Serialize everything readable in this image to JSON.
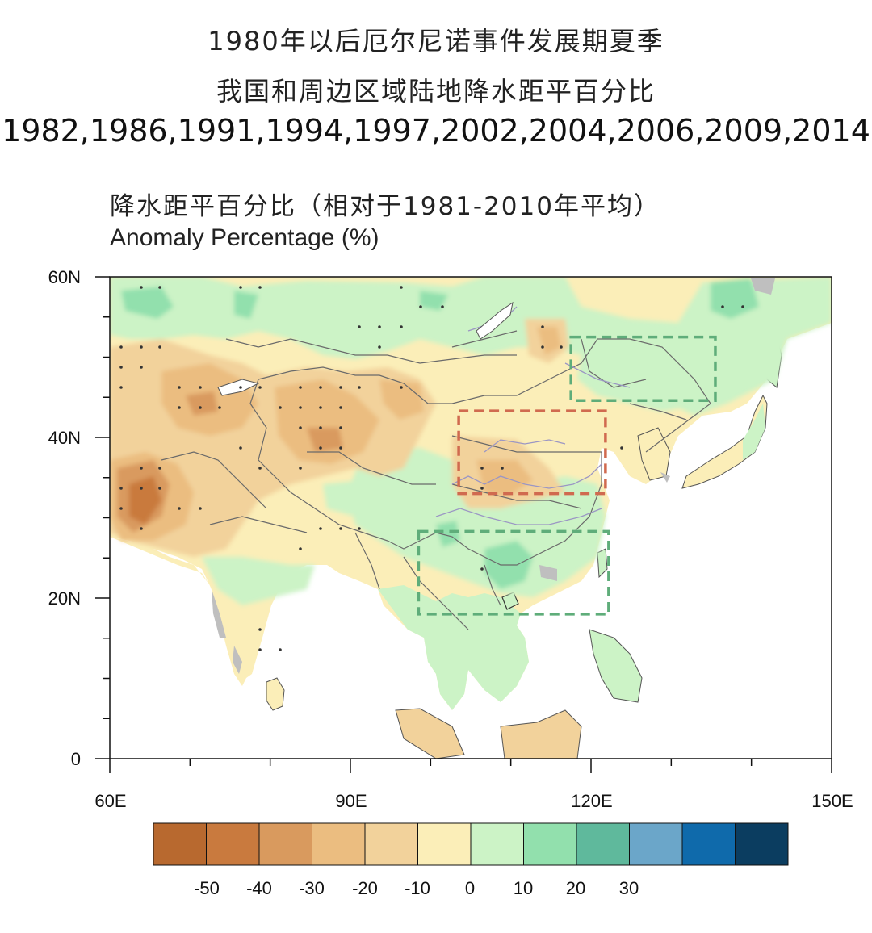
{
  "header": {
    "title_line1": "1980年以后厄尔尼诺事件发展期夏季",
    "title_line2": "我国和周边区域陆地降水距平百分比",
    "years": "1982,1986,1991,1994,1997,2002,2004,2006,2009,2014",
    "subtitle_cn": "降水距平百分比（相对于1981-2010年平均）",
    "subtitle_en": "Anomaly Percentage (%)"
  },
  "map": {
    "lat_ticks": [
      "60N",
      "40N",
      "20N",
      "0"
    ],
    "lon_ticks": [
      "60E",
      "90E",
      "120E",
      "150E"
    ],
    "extent": {
      "lon_min": 60,
      "lon_max": 150,
      "lat_min": 0,
      "lat_max": 60
    },
    "highlight_boxes": [
      {
        "id": "northeast-box",
        "color": "#5fad7a",
        "lon": [
          117.5,
          135.5
        ],
        "lat": [
          44.6,
          52.5
        ]
      },
      {
        "id": "north-china-box",
        "color": "#d06a4f",
        "lon": [
          103.5,
          121.8
        ],
        "lat": [
          33.0,
          43.3
        ]
      },
      {
        "id": "south-china-box",
        "color": "#5fad7a",
        "lon": [
          98.5,
          122.2
        ],
        "lat": [
          18.0,
          28.3
        ]
      }
    ]
  },
  "colorbar": {
    "colors": [
      "#b8692f",
      "#c97a3e",
      "#d99a5e",
      "#ebbd80",
      "#f2d29b",
      "#fbeeb8",
      "#ccf3c6",
      "#92e0ad",
      "#5fb99c",
      "#6ba6c9",
      "#0f6aab",
      "#0b3d60"
    ],
    "labels": [
      "-50",
      "-40",
      "-30",
      "-20",
      "-10",
      "0",
      "10",
      "20",
      "30"
    ]
  }
}
